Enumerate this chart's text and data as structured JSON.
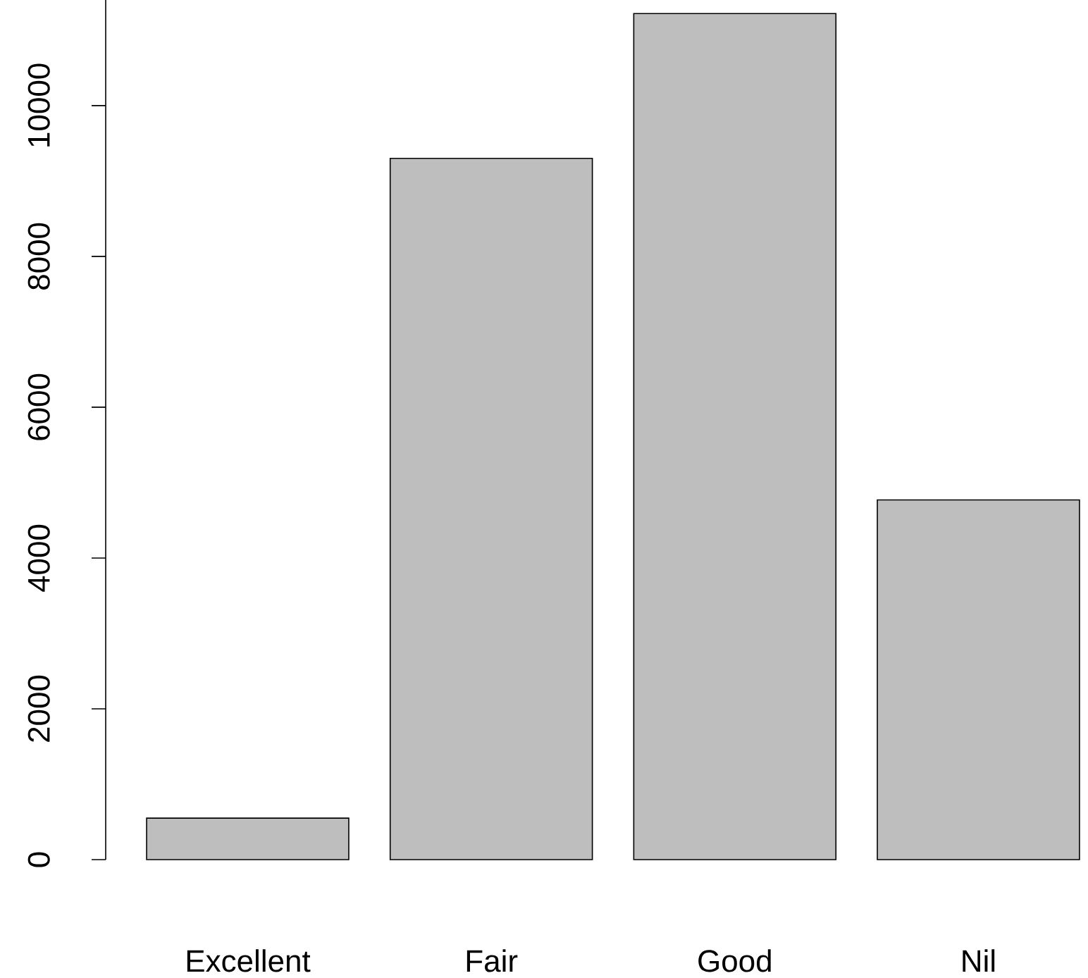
{
  "chart_data": {
    "type": "bar",
    "categories": [
      "Excellent",
      "Fair",
      "Good",
      "Nil"
    ],
    "values": [
      550,
      9300,
      11220,
      4770
    ],
    "color": "#bebebe",
    "ylim": [
      0,
      11400
    ],
    "yticks": [
      0,
      2000,
      4000,
      6000,
      8000,
      10000
    ],
    "grid": false
  }
}
